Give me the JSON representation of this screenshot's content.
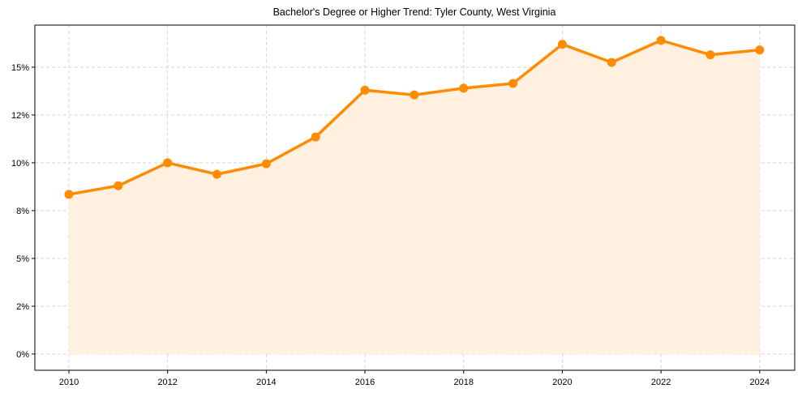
{
  "chart_data": {
    "type": "line",
    "title": "Bachelor's Degree or Higher Trend: Tyler County, West Virginia",
    "xlabel": "",
    "ylabel": "",
    "x": [
      2010,
      2011,
      2012,
      2013,
      2014,
      2015,
      2016,
      2017,
      2018,
      2019,
      2020,
      2021,
      2022,
      2023,
      2024
    ],
    "series": [
      {
        "name": "Bachelor's Degree or Higher (%)",
        "color": "#ff8c00",
        "fill_color": "#fff0e0",
        "values": [
          8.35,
          8.8,
          10.0,
          9.4,
          9.95,
          11.35,
          13.8,
          13.55,
          13.9,
          14.15,
          16.2,
          15.25,
          16.4,
          15.65,
          15.9
        ]
      }
    ],
    "x_ticks": [
      2010,
      2012,
      2014,
      2016,
      2018,
      2020,
      2022,
      2024
    ],
    "x_tick_labels": [
      "2010",
      "2012",
      "2014",
      "2016",
      "2018",
      "2020",
      "2022",
      "2024"
    ],
    "y_ticks": [
      0,
      2.5,
      5,
      7.5,
      10,
      12.5,
      15
    ],
    "y_tick_labels": [
      "0%",
      "2%",
      "5%",
      "8%",
      "10%",
      "12%",
      "15%"
    ],
    "xlim": [
      2009.31,
      2024.71
    ],
    "ylim": [
      -0.85,
      17.2
    ],
    "grid": true,
    "legend": "none"
  }
}
